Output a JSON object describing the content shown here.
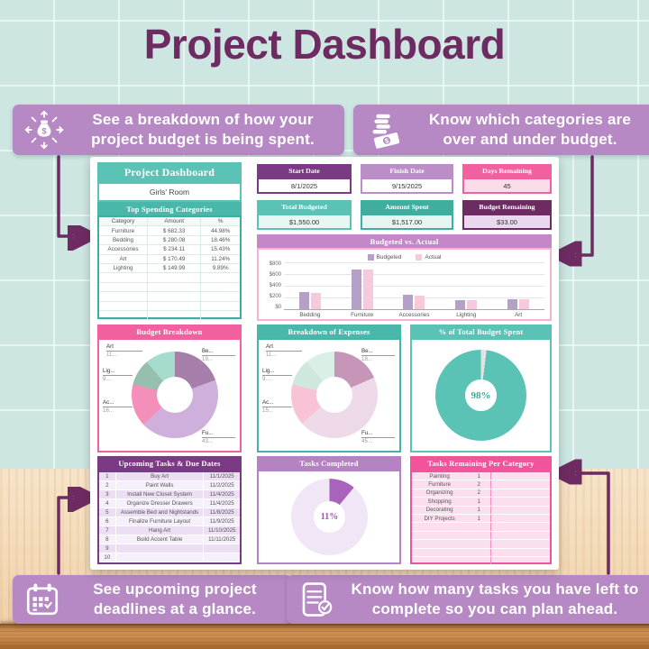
{
  "title": "Project Dashboard",
  "palette": {
    "background": "#cde6e1",
    "title_text": "#6d2b62",
    "callout_bg": "#b689c4",
    "arrow": "#6d2b62",
    "teal": "#5ac3b6",
    "teal_dark": "#3fae9e",
    "purple": "#7b3b84",
    "plum": "#6c2b61",
    "lavender": "#bb8ec8",
    "orchid": "#c488c9",
    "pink": "#f2609f",
    "budgeted_bar": "#b5a0c8",
    "actual_bar": "#f7c9dd"
  },
  "callouts": {
    "top_left": {
      "icon": "money-bag-arrows",
      "text": "See a breakdown of how your project budget is being spent."
    },
    "top_right": {
      "icon": "coins-cash",
      "text": "Know which categories are over and under budget."
    },
    "bottom_left": {
      "icon": "calendar",
      "text": "See upcoming project deadlines at a glance."
    },
    "bottom_right": {
      "icon": "checklist-check",
      "text": "Know how many tasks you have left to complete so you can plan ahead."
    }
  },
  "sheet": {
    "title_card": {
      "title": "Project Dashboard",
      "subtitle": "Girls' Room"
    },
    "cards": [
      {
        "label": "Start Date",
        "value": "8/1/2025"
      },
      {
        "label": "Finish Date",
        "value": "9/15/2025"
      },
      {
        "label": "Days Remaining",
        "value": "45"
      },
      {
        "label": "Total Budgeted",
        "value": "$1,550.00"
      },
      {
        "label": "Amount Spent",
        "value": "$1,517.00"
      },
      {
        "label": "Budget Remaining",
        "value": "$33.00"
      }
    ],
    "top_spending": {
      "title": "Top Spending Categories",
      "columns": [
        "Category",
        "Amount",
        "%"
      ],
      "rows": [
        [
          "Furniture",
          "$ 682.33",
          "44.98%"
        ],
        [
          "Bedding",
          "$ 280.08",
          "18.46%"
        ],
        [
          "Accessories",
          "$ 234.11",
          "15.43%"
        ],
        [
          "Art",
          "$ 170.49",
          "11.24%"
        ],
        [
          "Lighting",
          "$ 149.99",
          "9.89%"
        ]
      ],
      "empty_row_count": 5
    },
    "upcoming_tasks": {
      "title": "Upcoming Tasks & Due Dates",
      "rows": [
        [
          "1",
          "Buy Art",
          "11/1/2025"
        ],
        [
          "2",
          "Paint Walls",
          "11/2/2025"
        ],
        [
          "3",
          "Install New Closet System",
          "11/4/2025"
        ],
        [
          "4",
          "Organize Dresser Drawers",
          "11/4/2025"
        ],
        [
          "5",
          "Assemble Bed and Nightstands",
          "11/8/2025"
        ],
        [
          "6",
          "Finalize Furniture Layout",
          "11/9/2025"
        ],
        [
          "7",
          "Hang Art",
          "11/10/2025"
        ],
        [
          "8",
          "Build Accent Table",
          "11/11/2025"
        ],
        [
          "9",
          "",
          ""
        ],
        [
          "10",
          "",
          ""
        ]
      ]
    },
    "tasks_remaining": {
      "title": "Tasks Remaining Per Category",
      "rows": [
        [
          "Painting",
          "1"
        ],
        [
          "Furniture",
          "2"
        ],
        [
          "Organizing",
          "2"
        ],
        [
          "Shopping",
          "1"
        ],
        [
          "Decorating",
          "1"
        ],
        [
          "DIY Projects",
          "1"
        ]
      ],
      "empty_row_count": 5
    }
  },
  "chart_data": [
    {
      "id": "budget_vs_actual",
      "type": "bar",
      "title": "Budgeted vs. Actual",
      "categories": [
        "Bedding",
        "Furniture",
        "Accessories",
        "Lighting",
        "Art"
      ],
      "series": [
        {
          "name": "Budgeted",
          "color": "#b5a0c8",
          "values": [
            300,
            675,
            250,
            150,
            175
          ]
        },
        {
          "name": "Actual",
          "color": "#f7c9dd",
          "values": [
            280,
            682,
            234,
            150,
            170
          ]
        }
      ],
      "ylim": [
        0,
        800
      ],
      "yticks": [
        "$800",
        "$600",
        "$400",
        "$200",
        "$0"
      ],
      "grid": true,
      "legend_position": "top"
    },
    {
      "id": "budget_breakdown",
      "type": "pie",
      "donut": true,
      "title": "Budget Breakdown",
      "categories": [
        "Bedding",
        "Furniture",
        "Accessories",
        "Lighting",
        "Art"
      ],
      "values": [
        19.4,
        43.5,
        16.1,
        9.7,
        11.3
      ],
      "colors": [
        "#a57fa9",
        "#cfb0dc",
        "#f48fb9",
        "#96c0ad",
        "#a6dccd"
      ],
      "labels": {
        "bedding": {
          "name": "Be...",
          "value": "19..."
        },
        "furniture": {
          "name": "Fu...",
          "value": "43..."
        },
        "accessories": {
          "name": "Ac...",
          "value": "16..."
        },
        "lighting": {
          "name": "Lig...",
          "value": "9...."
        },
        "art": {
          "name": "Art",
          "value": "11..."
        }
      }
    },
    {
      "id": "expense_breakdown",
      "type": "pie",
      "donut": true,
      "title": "Breakdown of Expenses",
      "categories": [
        "Bedding",
        "Furniture",
        "Accessories",
        "Lighting",
        "Art"
      ],
      "values": [
        18.46,
        44.98,
        15.43,
        9.89,
        11.24
      ],
      "colors": [
        "#c795b7",
        "#eed9e9",
        "#f9c3d7",
        "#cfe8de",
        "#daf0e7"
      ],
      "labels": {
        "bedding": {
          "name": "Be...",
          "value": "18..."
        },
        "furniture": {
          "name": "Fu...",
          "value": "45..."
        },
        "accessories": {
          "name": "Ac...",
          "value": "15..."
        },
        "lighting": {
          "name": "Lig...",
          "value": "9...."
        },
        "art": {
          "name": "Art",
          "value": "11..."
        }
      }
    },
    {
      "id": "percent_spent",
      "type": "pie",
      "donut": true,
      "title": "% of Total Budget Spent",
      "categories": [
        "Remaining",
        "Spent"
      ],
      "values": [
        2,
        98
      ],
      "colors": [
        "#e3e3e3",
        "#5ac3b6"
      ],
      "center_label": "98%"
    },
    {
      "id": "tasks_completed",
      "type": "pie",
      "donut": true,
      "title": "Tasks Completed",
      "categories": [
        "Completed",
        "Remaining"
      ],
      "values": [
        11,
        89
      ],
      "colors": [
        "#aa63bc",
        "#f0e6f5"
      ],
      "center_label": "11%"
    }
  ]
}
